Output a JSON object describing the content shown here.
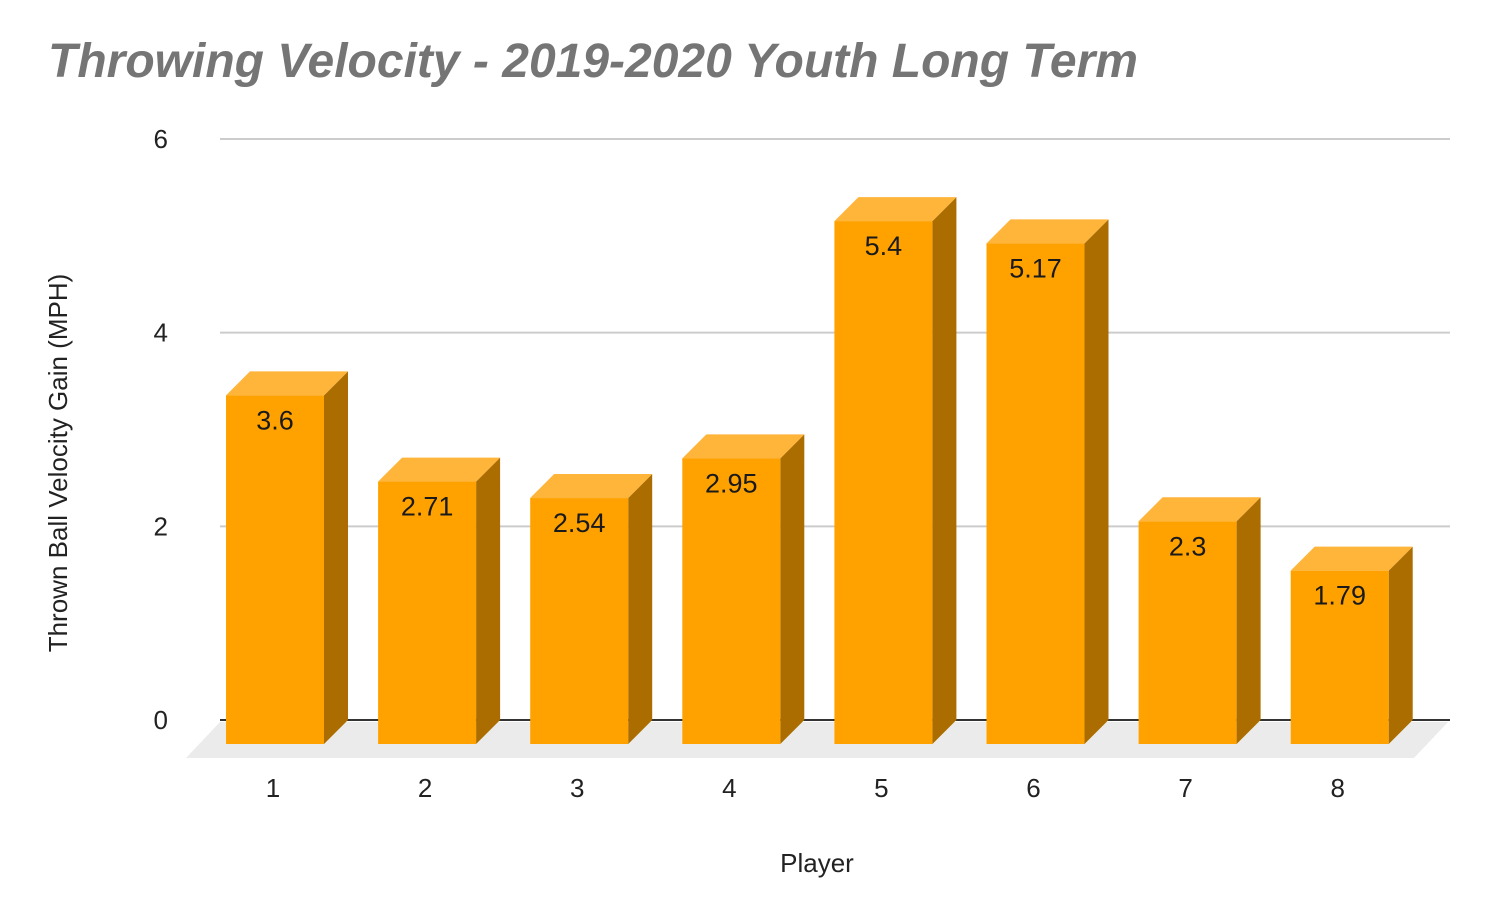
{
  "chart_data": {
    "type": "bar",
    "title": "Throwing Velocity - 2019-2020 Youth Long Term",
    "xlabel": "Player",
    "ylabel": "Thrown Ball Velocity Gain (MPH)",
    "categories": [
      "1",
      "2",
      "3",
      "4",
      "5",
      "6",
      "7",
      "8"
    ],
    "values": [
      3.6,
      2.71,
      2.54,
      2.95,
      5.4,
      5.17,
      2.3,
      1.79
    ],
    "data_labels": [
      "3.6",
      "2.71",
      "2.54",
      "2.95",
      "5.4",
      "5.17",
      "2.3",
      "1.79"
    ],
    "ylim": [
      0,
      6
    ],
    "yticks": [
      0,
      2,
      4,
      6
    ],
    "ytick_labels": [
      "0",
      "2",
      "4",
      "6"
    ],
    "grid": true,
    "style": "3d-bar",
    "colors": {
      "bar_front": "#FFA200",
      "bar_top": "#FFB43A",
      "bar_side": "#AB6D00",
      "floor": "#EBEBEB",
      "gridline": "#CCCCCC",
      "baseline": "#333333",
      "title": "#757575"
    }
  }
}
